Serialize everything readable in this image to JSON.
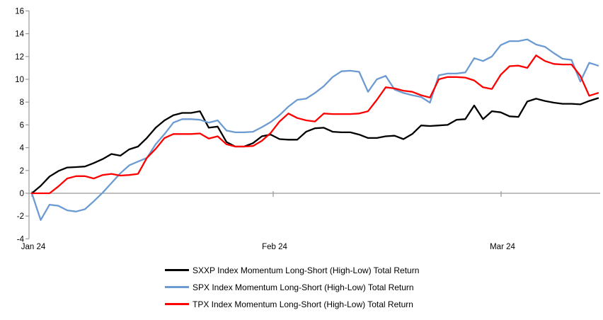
{
  "chart_data": {
    "type": "line",
    "title": "",
    "xlabel": "",
    "ylabel": "",
    "grid": "zero-line-only",
    "legend_position": "bottom",
    "y_axis": {
      "min": -4,
      "max": 16,
      "tick_step": 2,
      "tick_labels": [
        "16",
        "14",
        "12",
        "10",
        "8",
        "6",
        "4",
        "2",
        "0",
        "-2",
        "-4"
      ]
    },
    "x_axis": {
      "tick_labels": [
        "Jan 24",
        "Feb 24",
        "Mar 24"
      ]
    },
    "series": [
      {
        "name": "SXXP Index Momentum Long-Short (High-Low) Total Return",
        "color": "#000000",
        "values": [
          0,
          0.65,
          1.47,
          1.95,
          2.26,
          2.3,
          2.35,
          2.65,
          3.0,
          3.45,
          3.3,
          3.85,
          4.1,
          4.85,
          5.75,
          6.4,
          6.85,
          7.05,
          7.05,
          7.2,
          5.75,
          5.85,
          4.5,
          4.1,
          4.1,
          4.4,
          5.0,
          5.15,
          4.75,
          4.7,
          4.7,
          5.4,
          5.7,
          5.75,
          5.4,
          5.35,
          5.35,
          5.15,
          4.85,
          4.85,
          5.0,
          5.05,
          4.75,
          5.2,
          5.95,
          5.9,
          5.95,
          6.0,
          6.45,
          6.5,
          7.7,
          6.5,
          7.2,
          7.1,
          6.75,
          6.7,
          8.05,
          8.3,
          8.1,
          7.95,
          7.85,
          7.85,
          7.8,
          8.1,
          8.35
        ]
      },
      {
        "name": "SPX Index Momentum Long-Short (High-Low) Total Return",
        "color": "#6C9BD2",
        "values": [
          0,
          -2.35,
          -1.0,
          -1.1,
          -1.5,
          -1.6,
          -1.4,
          -0.7,
          0.05,
          0.9,
          1.75,
          2.45,
          2.78,
          3.1,
          4.3,
          5.2,
          6.2,
          6.5,
          6.5,
          6.45,
          6.2,
          6.4,
          5.5,
          5.35,
          5.35,
          5.4,
          5.8,
          6.25,
          6.85,
          7.6,
          8.2,
          8.3,
          8.8,
          9.4,
          10.2,
          10.7,
          10.75,
          10.65,
          8.9,
          10.0,
          10.3,
          9.1,
          8.8,
          8.6,
          8.45,
          7.95,
          10.35,
          10.5,
          10.5,
          10.6,
          11.85,
          11.6,
          12.0,
          13.0,
          13.35,
          13.35,
          13.5,
          13.05,
          12.85,
          12.3,
          11.8,
          11.7,
          9.8,
          11.45,
          11.2
        ]
      },
      {
        "name": "TPX Index Momentum Long-Short (High-Low) Total Return",
        "color": "#FF0000",
        "values": [
          0,
          0,
          0,
          0.6,
          1.3,
          1.5,
          1.5,
          1.3,
          1.6,
          1.7,
          1.55,
          1.6,
          1.7,
          3.1,
          3.9,
          4.85,
          5.2,
          5.2,
          5.2,
          5.25,
          4.8,
          5.0,
          4.3,
          4.1,
          4.1,
          4.15,
          4.6,
          5.3,
          6.3,
          7.0,
          6.6,
          6.4,
          6.3,
          7.0,
          6.95,
          6.95,
          6.95,
          7.0,
          7.2,
          8.2,
          9.3,
          9.2,
          9.0,
          8.9,
          8.6,
          8.4,
          10.0,
          10.2,
          10.2,
          10.15,
          9.9,
          9.3,
          9.15,
          10.4,
          11.15,
          11.2,
          11.0,
          12.1,
          11.6,
          11.35,
          11.3,
          11.3,
          10.3,
          8.55,
          8.8
        ]
      }
    ]
  },
  "colors": {
    "axis": "#999999",
    "text": "#000000",
    "background": "#FFFFFF"
  }
}
